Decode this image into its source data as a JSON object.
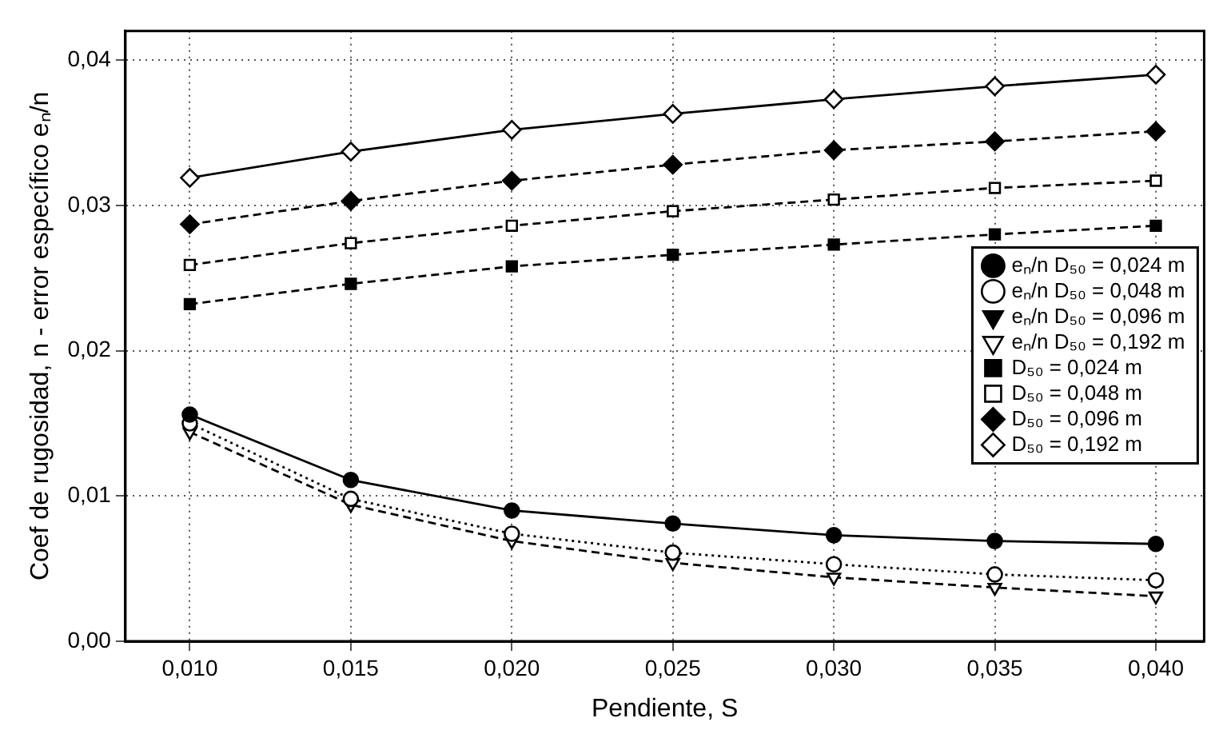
{
  "chart_data": {
    "type": "line",
    "xlabel": "Pendiente, S",
    "ylabel": "Coef de rugosidad, n - error específico eₙ/n",
    "x": [
      0.01,
      0.015,
      0.02,
      0.025,
      0.03,
      0.035,
      0.04
    ],
    "series": [
      {
        "name": "eₙ/n D₅₀ = 0,024 m",
        "color": "#000000",
        "marker": "circle",
        "line_style": "solid",
        "values": [
          0.0156,
          0.0111,
          0.009,
          0.0081,
          0.0073,
          0.0069,
          0.0067
        ]
      },
      {
        "name": "eₙ/n D₅₀ = 0,048 m",
        "color": "#000000",
        "marker": "circle",
        "line_style": "dotted",
        "values": [
          0.015,
          0.0098,
          0.0074,
          0.0061,
          0.0053,
          0.0046,
          0.0042
        ]
      },
      {
        "name": "eₙ/n D₅₀ = 0,096 m",
        "color": "#000000",
        "marker": "triangle",
        "line_style": "dashed",
        "values": [
          null,
          null,
          null,
          null,
          null,
          null,
          null
        ]
      },
      {
        "name": "eₙ/n D₅₀ = 0,192 m",
        "color": "#000000",
        "marker": "triangle",
        "line_style": "dashed",
        "values": [
          0.0144,
          0.0094,
          0.0069,
          0.0054,
          0.0044,
          0.0037,
          0.0031
        ]
      },
      {
        "name": "D₅₀ = 0,024 m",
        "color": "#000000",
        "marker": "square",
        "line_style": "dashed",
        "values": [
          0.0232,
          0.0246,
          0.0258,
          0.0266,
          0.0273,
          0.028,
          0.0286
        ]
      },
      {
        "name": "D₅₀ = 0,048 m",
        "color": "#000000",
        "marker": "square",
        "line_style": "dashed",
        "values": [
          0.0259,
          0.0274,
          0.0286,
          0.0296,
          0.0304,
          0.0312,
          0.0317
        ]
      },
      {
        "name": "D₅₀ = 0,096 m",
        "color": "#000000",
        "marker": "diamond",
        "line_style": "dashed",
        "values": [
          0.0287,
          0.0303,
          0.0317,
          0.0328,
          0.0338,
          0.0344,
          0.0351
        ]
      },
      {
        "name": "D₅₀ = 0,192 m",
        "color": "#000000",
        "marker": "diamond",
        "line_style": "solid",
        "values": [
          0.0319,
          0.0337,
          0.0352,
          0.0363,
          0.0373,
          0.0382,
          0.039
        ]
      }
    ],
    "xlim": [
      0.008,
      0.0415
    ],
    "xticks": [
      {
        "value": 0.01,
        "label": "0,010"
      },
      {
        "value": 0.015,
        "label": "0,015"
      },
      {
        "value": 0.02,
        "label": "0,020"
      },
      {
        "value": 0.025,
        "label": "0,025"
      },
      {
        "value": 0.03,
        "label": "0,030"
      },
      {
        "value": 0.035,
        "label": "0,035"
      },
      {
        "value": 0.04,
        "label": "0,040"
      }
    ],
    "ylim": [
      0,
      0.042
    ],
    "yticks": [
      {
        "value": 0,
        "label": "0,00"
      },
      {
        "value": 0.01,
        "label": "0,01"
      },
      {
        "value": 0.02,
        "label": "0,02"
      },
      {
        "value": 0.03,
        "label": "0,03"
      },
      {
        "value": 0.04,
        "label": "0,04"
      }
    ],
    "grid": true,
    "legend": "right"
  }
}
